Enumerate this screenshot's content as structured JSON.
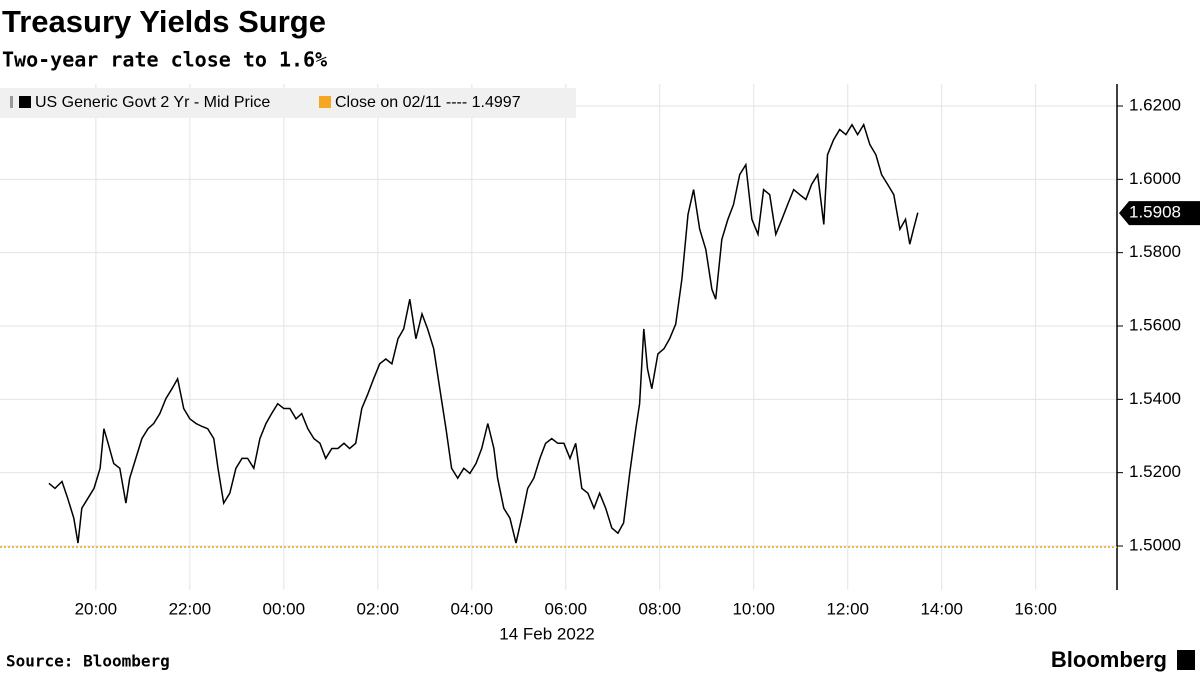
{
  "chart_data": {
    "type": "line",
    "title": "Treasury Yields Surge",
    "subtitle": "Two-year rate close to 1.6%",
    "x_axis_label": "14 Feb 2022",
    "source": "Source: Bloomberg",
    "brand": "Bloomberg",
    "series": [
      {
        "name": "US Generic Govt 2 Yr - Mid Price",
        "color": "#000000",
        "x": [
          19.0,
          19.13,
          19.28,
          19.4,
          19.53,
          19.62,
          19.7,
          19.83,
          19.96,
          20.09,
          20.17,
          20.26,
          20.38,
          20.51,
          20.64,
          20.72,
          20.85,
          20.98,
          21.11,
          21.23,
          21.36,
          21.49,
          21.62,
          21.74,
          21.87,
          22.0,
          22.13,
          22.26,
          22.38,
          22.51,
          22.6,
          22.72,
          22.85,
          22.98,
          23.11,
          23.23,
          23.36,
          23.49,
          23.62,
          23.74,
          23.87,
          24.0,
          24.13,
          24.26,
          24.38,
          24.51,
          24.64,
          24.77,
          24.89,
          25.02,
          25.15,
          25.28,
          25.4,
          25.53,
          25.66,
          25.79,
          25.91,
          26.04,
          26.17,
          26.3,
          26.43,
          26.55,
          26.68,
          26.81,
          26.94,
          27.06,
          27.19,
          27.32,
          27.45,
          27.57,
          27.7,
          27.83,
          27.96,
          28.09,
          28.21,
          28.34,
          28.47,
          28.55,
          28.68,
          28.81,
          28.94,
          29.06,
          29.19,
          29.32,
          29.45,
          29.57,
          29.7,
          29.83,
          29.96,
          30.09,
          30.21,
          30.34,
          30.47,
          30.6,
          30.72,
          30.85,
          30.98,
          31.11,
          31.23,
          31.36,
          31.49,
          31.57,
          31.66,
          31.74,
          31.83,
          31.96,
          32.09,
          32.21,
          32.34,
          32.47,
          32.6,
          32.72,
          32.85,
          32.98,
          33.11,
          33.19,
          33.32,
          33.45,
          33.57,
          33.7,
          33.83,
          33.96,
          34.09,
          34.21,
          34.34,
          34.47,
          34.6,
          34.72,
          34.85,
          34.98,
          35.11,
          35.23,
          35.36,
          35.49,
          35.57,
          35.7,
          35.83,
          35.96,
          36.09,
          36.21,
          36.34,
          36.47,
          36.6,
          36.72,
          36.85,
          36.98,
          37.11,
          37.23,
          37.32,
          37.4,
          37.49
        ],
        "values": [
          1.5171,
          1.5157,
          1.5176,
          1.513,
          1.5076,
          1.5008,
          1.5103,
          1.513,
          1.5157,
          1.5212,
          1.532,
          1.528,
          1.5225,
          1.5212,
          1.5117,
          1.5185,
          1.5239,
          1.5293,
          1.532,
          1.5334,
          1.5361,
          1.5402,
          1.5429,
          1.5456,
          1.5375,
          1.5347,
          1.5334,
          1.5326,
          1.532,
          1.5293,
          1.5212,
          1.5117,
          1.5144,
          1.5212,
          1.5239,
          1.5239,
          1.5212,
          1.5293,
          1.5334,
          1.5361,
          1.5388,
          1.5375,
          1.5375,
          1.5347,
          1.5361,
          1.532,
          1.5293,
          1.528,
          1.5239,
          1.5266,
          1.5266,
          1.528,
          1.5266,
          1.528,
          1.5375,
          1.5415,
          1.5456,
          1.5497,
          1.551,
          1.5497,
          1.5565,
          1.5592,
          1.5673,
          1.5565,
          1.5633,
          1.5592,
          1.5538,
          1.5429,
          1.532,
          1.5212,
          1.5185,
          1.5212,
          1.5198,
          1.5225,
          1.5266,
          1.5334,
          1.5266,
          1.5185,
          1.5103,
          1.5076,
          1.5008,
          1.5076,
          1.5157,
          1.5185,
          1.5239,
          1.528,
          1.5293,
          1.528,
          1.528,
          1.5239,
          1.528,
          1.5157,
          1.5144,
          1.5103,
          1.5144,
          1.5103,
          1.5049,
          1.5035,
          1.5063,
          1.5198,
          1.532,
          1.5388,
          1.5592,
          1.5483,
          1.5429,
          1.5524,
          1.5538,
          1.5565,
          1.5605,
          1.5728,
          1.5904,
          1.5972,
          1.5864,
          1.5809,
          1.57,
          1.5673,
          1.5836,
          1.5891,
          1.5931,
          1.6013,
          1.604,
          1.5891,
          1.585,
          1.5972,
          1.5958,
          1.585,
          1.5891,
          1.5931,
          1.5972,
          1.5958,
          1.5945,
          1.5986,
          1.6013,
          1.5877,
          1.6067,
          1.6108,
          1.6136,
          1.6122,
          1.6149,
          1.6122,
          1.6149,
          1.6095,
          1.6067,
          1.6013,
          1.5986,
          1.5958,
          1.5864,
          1.5891,
          1.5823,
          1.5864,
          1.5909
        ]
      }
    ],
    "reference_line": {
      "name": "Close on 02/11 ---- 1.4997",
      "value": 1.4997,
      "color": "#f5a623"
    },
    "last_value": 1.5908,
    "xlim": [
      17.96,
      41.73
    ],
    "xticks": [
      {
        "value": 20,
        "label": "20:00"
      },
      {
        "value": 22,
        "label": "22:00"
      },
      {
        "value": 24,
        "label": "00:00"
      },
      {
        "value": 26,
        "label": "02:00"
      },
      {
        "value": 28,
        "label": "04:00"
      },
      {
        "value": 30,
        "label": "06:00"
      },
      {
        "value": 32,
        "label": "08:00"
      },
      {
        "value": 34,
        "label": "10:00"
      },
      {
        "value": 36,
        "label": "12:00"
      },
      {
        "value": 38,
        "label": "14:00"
      },
      {
        "value": 40,
        "label": "16:00"
      }
    ],
    "ylim": [
      1.488,
      1.626
    ],
    "yticks": [
      {
        "value": 1.5,
        "label": "1.5000"
      },
      {
        "value": 1.52,
        "label": "1.5200"
      },
      {
        "value": 1.54,
        "label": "1.5400"
      },
      {
        "value": 1.56,
        "label": "1.5600"
      },
      {
        "value": 1.58,
        "label": "1.5800"
      },
      {
        "value": 1.6,
        "label": "1.6000"
      },
      {
        "value": 1.62,
        "label": "1.6200"
      }
    ],
    "grid": true
  }
}
